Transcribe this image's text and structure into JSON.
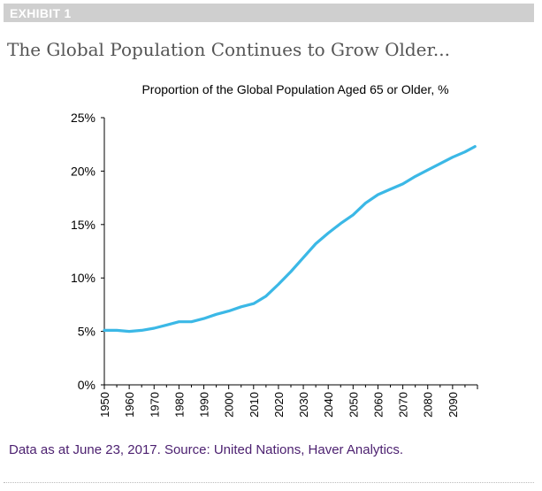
{
  "exhibit_label": "EXHIBIT 1",
  "headline": "The Global Population Continues to Grow Older...",
  "source_note": "Data as at June 23, 2017. Source: United Nations, Haver Analytics.",
  "colors": {
    "line": "#3bb8e6",
    "axis": "#000000",
    "source_text": "#4b1f6f"
  },
  "chart_data": {
    "type": "line",
    "title": "Proportion of the Global Population Aged 65 or Older, %",
    "xlabel": "",
    "ylabel": "",
    "xlim": [
      1950,
      2100
    ],
    "ylim": [
      0,
      25
    ],
    "yticks": [
      0,
      5,
      10,
      15,
      20,
      25
    ],
    "ytick_labels": [
      "0%",
      "5%",
      "10%",
      "15%",
      "20%",
      "25%"
    ],
    "xticks": [
      1950,
      1960,
      1970,
      1980,
      1990,
      2000,
      2010,
      2020,
      2030,
      2040,
      2050,
      2060,
      2070,
      2080,
      2090
    ],
    "xtick_labels": [
      "1950",
      "1960",
      "1970",
      "1980",
      "1990",
      "2000",
      "2010",
      "2020",
      "2030",
      "2040",
      "2050",
      "2060",
      "2070",
      "2080",
      "2090"
    ],
    "grid": false,
    "legend": "none",
    "series": [
      {
        "x": [
          1950,
          1955,
          1960,
          1965,
          1970,
          1975,
          1980,
          1985,
          1990,
          1995,
          2000,
          2005,
          2010,
          2015,
          2020,
          2025,
          2030,
          2035,
          2040,
          2045,
          2050,
          2055,
          2060,
          2065,
          2070,
          2075,
          2080,
          2085,
          2090,
          2095,
          2099
        ],
        "y": [
          5.1,
          5.1,
          5.0,
          5.1,
          5.3,
          5.6,
          5.9,
          5.9,
          6.2,
          6.6,
          6.9,
          7.3,
          7.6,
          8.3,
          9.4,
          10.6,
          11.9,
          13.2,
          14.2,
          15.1,
          15.9,
          17.0,
          17.8,
          18.3,
          18.8,
          19.5,
          20.1,
          20.7,
          21.3,
          21.8,
          22.3
        ]
      }
    ]
  }
}
